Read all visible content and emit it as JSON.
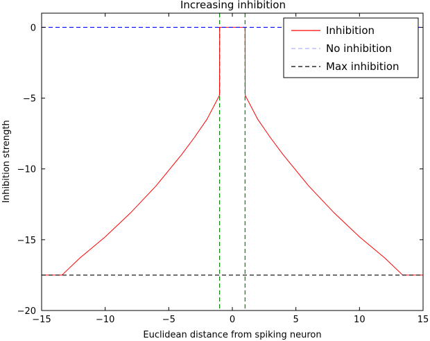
{
  "chart_data": {
    "type": "line",
    "title": "Increasing inhibition",
    "xlabel": "Euclidean distance from spiking neuron",
    "ylabel": "Inhibition strength",
    "xlim": [
      -15,
      15
    ],
    "ylim": [
      -20,
      1
    ],
    "xticks": [
      -15,
      -10,
      -5,
      0,
      5,
      10,
      15
    ],
    "yticks": [
      0,
      -5,
      -10,
      -15,
      -20
    ],
    "xtick_labels": [
      "−15",
      "−10",
      "−5",
      "0",
      "5",
      "10",
      "15"
    ],
    "ytick_labels": [
      "0",
      "−5",
      "−10",
      "−15",
      "−20"
    ],
    "grid": false,
    "legend_position": "top-right",
    "series": [
      {
        "name": "Inhibition",
        "color": "#ff0000",
        "style": "solid",
        "x": [
          -15,
          -13.4,
          -12,
          -10,
          -8,
          -6,
          -4,
          -3,
          -2,
          -1.01,
          -1,
          1,
          1.01,
          2,
          3,
          4,
          6,
          8,
          10,
          12,
          13.4,
          15
        ],
        "y": [
          -17.5,
          -17.5,
          -16.3,
          -14.8,
          -13.1,
          -11.2,
          -9.0,
          -7.8,
          -6.5,
          -4.8,
          0,
          0,
          -4.8,
          -6.5,
          -7.8,
          -9.0,
          -11.2,
          -13.1,
          -14.8,
          -16.3,
          -17.5,
          -17.5
        ]
      },
      {
        "name": "No inhibition",
        "color": "#0000ff",
        "legend_color": "#b0b0ff",
        "style": "dashed",
        "x": [
          -15,
          15
        ],
        "y": [
          0,
          0
        ]
      },
      {
        "name": "Max inhibition",
        "color": "#000000",
        "style": "dashed",
        "x": [
          -15,
          15
        ],
        "y": [
          -17.5,
          -17.5
        ]
      }
    ],
    "vlines": [
      {
        "x": -1,
        "color": "#008000",
        "style": "dashed"
      },
      {
        "x": 1,
        "color": "#008000",
        "style": "dashed"
      }
    ]
  }
}
